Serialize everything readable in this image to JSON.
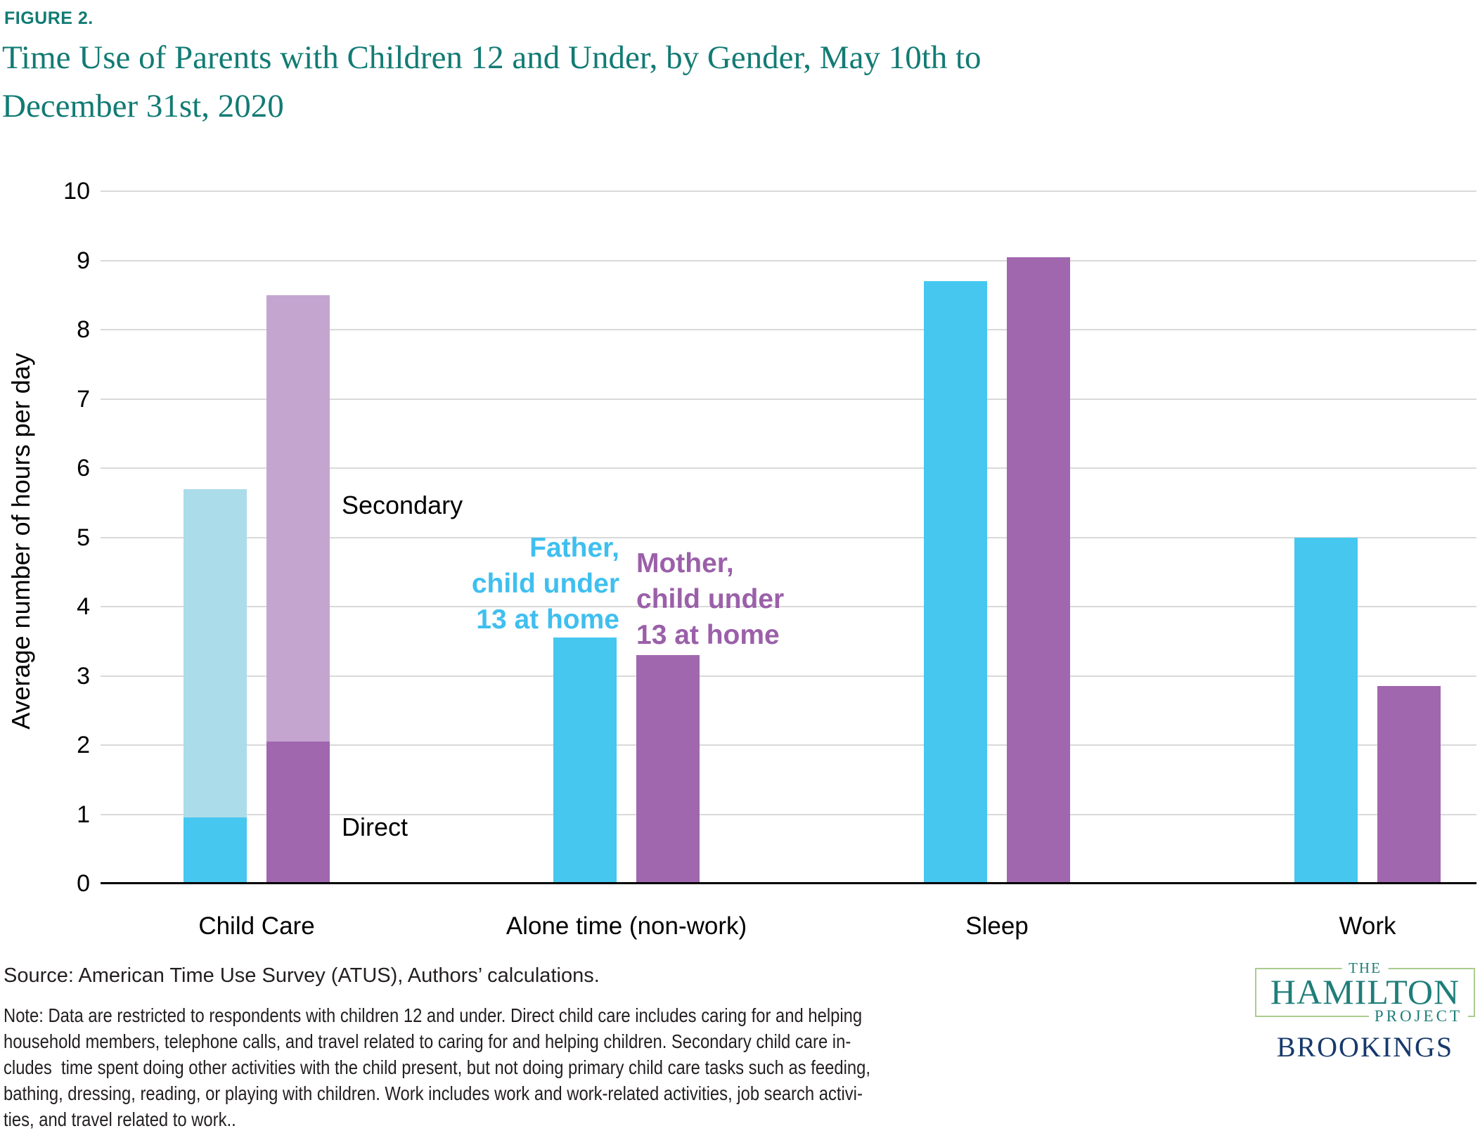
{
  "figure_label": "FIGURE 2.",
  "title": {
    "line1": "Time Use of Parents with Children 12 and Under, by Gender, May 10th to",
    "line2": "December 31st, 2020"
  },
  "chart_data": {
    "type": "bar",
    "title": "Time Use of Parents with Children 12 and Under, by Gender, May 10th to December 31st, 2020",
    "ylabel": "Average number of hours per day",
    "ylim": [
      0,
      10
    ],
    "yticks": [
      0,
      1,
      2,
      3,
      4,
      5,
      6,
      7,
      8,
      9,
      10
    ],
    "grid": "horizontal",
    "legend_position": "in-plot text annotations",
    "categories": [
      "Child Care",
      "Alone time (non-work)",
      "Sleep",
      "Work"
    ],
    "stack_labels": {
      "secondary": "Secondary",
      "direct": "Direct"
    },
    "series": [
      {
        "name": "Father, child under 13 at home",
        "color": "#45c7f0",
        "secondary_color": "#abdce9",
        "direct_values": [
          0.95,
          3.55,
          8.7,
          5.0
        ],
        "secondary_values": [
          4.75,
          0,
          0,
          0
        ]
      },
      {
        "name": "Mother, child under 13 at home",
        "color": "#a067ae",
        "secondary_color": "#c4a5d0",
        "direct_values": [
          2.05,
          3.3,
          9.05,
          2.85
        ],
        "secondary_values": [
          6.45,
          0,
          0,
          0
        ]
      }
    ]
  },
  "annotations": {
    "secondary": "Secondary",
    "direct": "Direct",
    "father": "Father,\nchild under\n13 at home",
    "mother": "Mother,\nchild under\n13 at home"
  },
  "colors": {
    "accent_teal": "#127b74",
    "father_blue": "#45c7f0",
    "father_light_blue": "#abdce9",
    "mother_purple": "#a067ae",
    "mother_light_purple": "#c4a5d0",
    "father_label": "#3fbfef",
    "mother_label": "#9b60a9",
    "gridline_gray": "#d9d9d9",
    "logo_green": "#a9cc8f",
    "logo_teal": "#1f7e79",
    "brookings_navy": "#17396b"
  },
  "footer": {
    "source": "Source: American Time Use Survey (ATUS), Authors’ calculations.",
    "note": "Note: Data are restricted to respondents with children 12 and under. Direct child care includes caring for and helping\nhousehold members, telephone calls, and travel related to caring for and helping children. Secondary child care in-\ncludes  time spent doing other activities with the child present, but not doing primary child care tasks such as feeding,\nbathing, dressing, reading, or playing with children. Work includes work and work-related activities, job search activi-\nties, and travel related to work.."
  },
  "logo": {
    "the": "THE",
    "hamilton": "HAMILTON",
    "project": "PROJECT",
    "brookings": "BROOKINGS"
  }
}
